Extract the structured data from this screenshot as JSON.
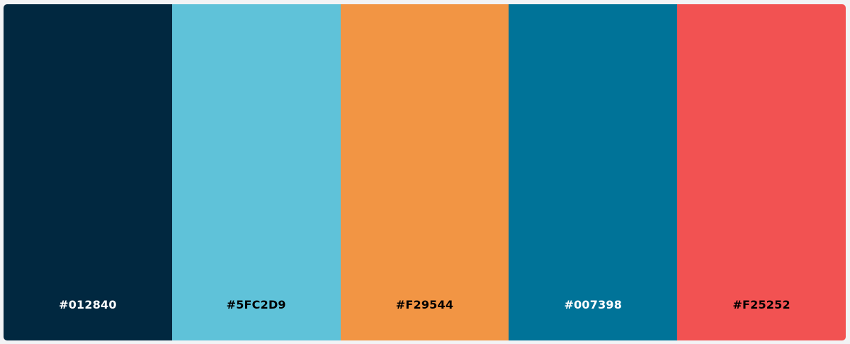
{
  "palette": {
    "swatches": [
      {
        "label": "#012840",
        "color": "#012840",
        "text_color": "#ffffff"
      },
      {
        "label": "#5FC2D9",
        "color": "#5FC2D9",
        "text_color": "#000000"
      },
      {
        "label": "#F29544",
        "color": "#F29544",
        "text_color": "#000000"
      },
      {
        "label": "#007398",
        "color": "#007398",
        "text_color": "#ffffff"
      },
      {
        "label": "#F25252",
        "color": "#F25252",
        "text_color": "#000000"
      }
    ]
  }
}
